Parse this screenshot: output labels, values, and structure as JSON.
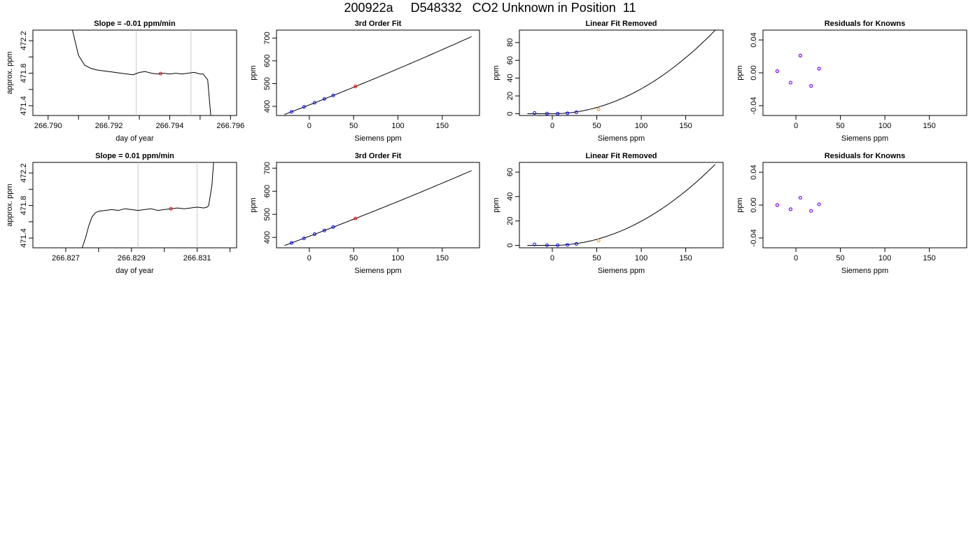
{
  "main_title": "200922a     D548332   CO2 Unknown in Position  11",
  "colors": {
    "frame": "#000000",
    "line": "#000000",
    "marker_lines": "#c8c8c8",
    "known_points": "#0000ff",
    "unknown_point_fit": "#ff0000",
    "unknown_point_linear": "#ff8000",
    "residual_points": "#8000ff"
  },
  "chart_data": [
    {
      "type": "line",
      "panel": "row1-trace",
      "title": "Slope =  -0.01  ppm/min",
      "xlabel": "day of year",
      "ylabel": "approx. ppm",
      "xlim": [
        266.7895,
        266.7962
      ],
      "ylim": [
        471.28,
        472.33
      ],
      "xticks": [
        266.79,
        266.792,
        266.794,
        266.796
      ],
      "xtick_labels": [
        "266.790",
        "266.792",
        "266.794",
        "266.796"
      ],
      "xticks_minor": [
        266.791,
        266.793,
        266.795
      ],
      "yticks": [
        471.4,
        471.8,
        472.2
      ],
      "ytick_labels": [
        "471.4",
        "471.8",
        "472.2"
      ],
      "yticks_minor": [
        471.6,
        472.0
      ],
      "vlines": [
        266.7929,
        266.7947
      ],
      "x": [
        266.7908,
        266.791,
        266.7912,
        266.7914,
        266.7916,
        266.7918,
        266.792,
        266.7922,
        266.7924,
        266.7926,
        266.7928,
        266.793,
        266.7932,
        266.7934,
        266.7936,
        266.7938,
        266.794,
        266.7942,
        266.7944,
        266.7946,
        266.7948,
        266.795,
        266.7951,
        266.79525,
        266.7953,
        266.79535
      ],
      "y": [
        472.33,
        472.02,
        471.9,
        471.86,
        471.84,
        471.83,
        471.82,
        471.81,
        471.8,
        471.79,
        471.78,
        471.81,
        471.82,
        471.8,
        471.79,
        471.8,
        471.79,
        471.8,
        471.79,
        471.8,
        471.81,
        471.79,
        471.79,
        471.72,
        471.5,
        471.28
      ],
      "highlight_point": {
        "x": 266.7937,
        "y": 471.795
      }
    },
    {
      "type": "scatter",
      "panel": "row1-fit",
      "title": "3rd Order Fit",
      "xlabel": "Siemens ppm",
      "ylabel": "ppm",
      "xlim": [
        -37,
        192
      ],
      "ylim": [
        360,
        735
      ],
      "xticks": [
        0,
        50,
        100,
        150
      ],
      "xtick_labels": [
        "0",
        "50",
        "100",
        "150"
      ],
      "yticks": [
        400,
        500,
        600,
        700
      ],
      "ytick_labels": [
        "400",
        "500",
        "600",
        "700"
      ],
      "curve": {
        "x0": -28,
        "x1": 183,
        "c0": 406.5,
        "c1": 1.52,
        "c2": 0.00065
      },
      "knowns": {
        "x": [
          -20,
          -6,
          6,
          17,
          27
        ],
        "y": [
          376,
          398,
          416,
          433,
          448
        ]
      },
      "unknown": {
        "x": [
          52
        ],
        "y": [
          488
        ]
      }
    },
    {
      "type": "scatter",
      "panel": "row1-linear-removed",
      "title": "Linear Fit Removed",
      "xlabel": "Siemens ppm",
      "ylabel": "ppm",
      "xlim": [
        -37,
        192
      ],
      "ylim": [
        -2,
        94
      ],
      "xticks": [
        0,
        50,
        100,
        150
      ],
      "xtick_labels": [
        "0",
        "50",
        "100",
        "150"
      ],
      "yticks": [
        0,
        20,
        40,
        60,
        80
      ],
      "ytick_labels": [
        "0",
        "20",
        "40",
        "60",
        "80"
      ],
      "curve": {
        "x0": -28,
        "x1": 183,
        "xmin": 0,
        "a": 0.0028,
        "p": 2
      },
      "knowns": {
        "x": [
          -20,
          -6,
          6,
          17,
          27
        ],
        "y": [
          0.8,
          0.2,
          0.1,
          0.5,
          1.6
        ]
      },
      "unknown": {
        "x": [
          52
        ],
        "y": [
          5
        ]
      }
    },
    {
      "type": "scatter",
      "panel": "row1-residuals",
      "title": "Residuals for Knowns",
      "xlabel": "Siemens ppm",
      "ylabel": "ppm",
      "xlim": [
        -37,
        192
      ],
      "ylim": [
        -0.052,
        0.052
      ],
      "xticks": [
        0,
        50,
        100,
        150
      ],
      "xtick_labels": [
        "0",
        "50",
        "100",
        "150"
      ],
      "yticks": [
        -0.04,
        0.0,
        0.04
      ],
      "ytick_labels": [
        "-0.04",
        "0.00",
        "0.04"
      ],
      "residuals": {
        "x": [
          -21,
          -6,
          5,
          17,
          26
        ],
        "y": [
          0.002,
          -0.012,
          0.021,
          -0.016,
          0.005
        ]
      }
    },
    {
      "type": "line",
      "panel": "row2-trace",
      "title": "Slope =  0.01  ppm/min",
      "xlabel": "day of year",
      "ylabel": "approx. ppm",
      "xlim": [
        266.826,
        266.8322
      ],
      "ylim": [
        471.28,
        472.33
      ],
      "xticks": [
        266.827,
        266.829,
        266.831
      ],
      "xtick_labels": [
        "266.827",
        "266.829",
        "266.831"
      ],
      "xticks_minor": [
        266.828,
        266.83,
        266.832
      ],
      "yticks": [
        471.4,
        471.8,
        472.2
      ],
      "ytick_labels": [
        "471.4",
        "471.8",
        "472.2"
      ],
      "yticks_minor": [
        471.6,
        472.0
      ],
      "vlines": [
        266.8292,
        266.831
      ],
      "x": [
        266.8275,
        266.8276,
        266.8277,
        266.8278,
        266.8279,
        266.828,
        266.8282,
        266.8284,
        266.8286,
        266.8288,
        266.829,
        266.8292,
        266.8294,
        266.8296,
        266.8298,
        266.83,
        266.8302,
        266.8304,
        266.8306,
        266.8308,
        266.831,
        266.8312,
        266.8313,
        266.83135,
        266.83145,
        266.8315
      ],
      "y": [
        471.28,
        471.4,
        471.55,
        471.66,
        471.71,
        471.73,
        471.74,
        471.75,
        471.74,
        471.76,
        471.75,
        471.74,
        471.75,
        471.76,
        471.74,
        471.75,
        471.76,
        471.77,
        471.76,
        471.77,
        471.78,
        471.77,
        471.78,
        471.8,
        472.05,
        472.33
      ],
      "highlight_point": {
        "x": 266.8302,
        "y": 471.76
      }
    },
    {
      "type": "scatter",
      "panel": "row2-fit",
      "title": "3rd Order Fit",
      "xlabel": "Siemens ppm",
      "ylabel": "ppm",
      "xlim": [
        -37,
        192
      ],
      "ylim": [
        355,
        725
      ],
      "xticks": [
        0,
        50,
        100,
        150
      ],
      "xtick_labels": [
        "0",
        "50",
        "100",
        "150"
      ],
      "yticks": [
        400,
        500,
        600,
        700
      ],
      "ytick_labels": [
        "400",
        "500",
        "600",
        "700"
      ],
      "curve": {
        "x0": -28,
        "x1": 183,
        "c0": 405,
        "c1": 1.45,
        "c2": 0.00056
      },
      "knowns": {
        "x": [
          -20,
          -6,
          6,
          17,
          27
        ],
        "y": [
          376,
          396,
          414,
          430,
          445
        ]
      },
      "unknown": {
        "x": [
          52
        ],
        "y": [
          482
        ]
      }
    },
    {
      "type": "scatter",
      "panel": "row2-linear-removed",
      "title": "Linear Fit Removed",
      "xlabel": "Siemens ppm",
      "ylabel": "ppm",
      "xlim": [
        -37,
        192
      ],
      "ylim": [
        -2,
        68
      ],
      "xticks": [
        0,
        50,
        100,
        150
      ],
      "xtick_labels": [
        "0",
        "50",
        "100",
        "150"
      ],
      "yticks": [
        0,
        20,
        40,
        60
      ],
      "ytick_labels": [
        "0",
        "20",
        "40",
        "60"
      ],
      "curve": {
        "x0": -28,
        "x1": 183,
        "xmin": 0,
        "a": 0.00198,
        "p": 2
      },
      "knowns": {
        "x": [
          -20,
          -6,
          6,
          17,
          27
        ],
        "y": [
          0.7,
          0.1,
          0.1,
          0.4,
          1.2
        ]
      },
      "unknown": {
        "x": [
          52
        ],
        "y": [
          4
        ]
      }
    },
    {
      "type": "scatter",
      "panel": "row2-residuals",
      "title": "Residuals for Knowns",
      "xlabel": "Siemens ppm",
      "ylabel": "ppm",
      "xlim": [
        -37,
        192
      ],
      "ylim": [
        -0.052,
        0.052
      ],
      "xticks": [
        0,
        50,
        100,
        150
      ],
      "xtick_labels": [
        "0",
        "50",
        "100",
        "150"
      ],
      "yticks": [
        -0.04,
        0.0,
        0.04
      ],
      "ytick_labels": [
        "-0.04",
        "0.00",
        "0.04"
      ],
      "residuals": {
        "x": [
          -21,
          -6,
          5,
          17,
          26
        ],
        "y": [
          0.0,
          -0.005,
          0.009,
          -0.007,
          0.001
        ]
      }
    }
  ]
}
